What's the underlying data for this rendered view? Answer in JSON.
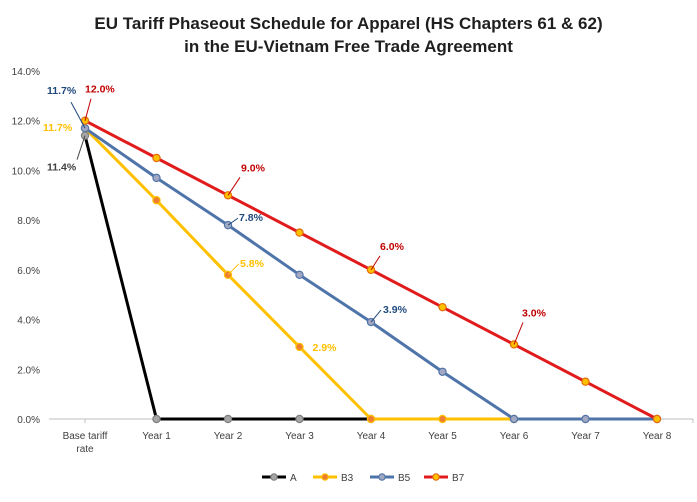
{
  "chart_data": {
    "type": "line",
    "title_lines": [
      "EU Tariff Phaseout Schedule for Apparel (HS Chapters 61 & 62)",
      "in the EU-Vietnam Free Trade Agreement"
    ],
    "categories": [
      [
        "Base tariff",
        "rate"
      ],
      [
        "Year 1"
      ],
      [
        "Year 2"
      ],
      [
        "Year 3"
      ],
      [
        "Year 4"
      ],
      [
        "Year 5"
      ],
      [
        "Year 6"
      ],
      [
        "Year 7"
      ],
      [
        "Year 8"
      ]
    ],
    "y_axis": {
      "min": 0,
      "max": 14,
      "step": 2,
      "tick_labels": [
        "0.0%",
        "2.0%",
        "4.0%",
        "6.0%",
        "8.0%",
        "10.0%",
        "12.0%",
        "14.0%"
      ]
    },
    "grid": false,
    "legend_position": "bottom",
    "series": [
      {
        "name": "A",
        "line_color": "#000000",
        "marker_fill": "#a6a6a6",
        "marker_stroke": "#7f7f7f",
        "values": [
          11.4,
          0,
          0,
          0,
          0,
          null,
          null,
          null,
          null
        ]
      },
      {
        "name": "B3",
        "line_color": "#ffc000",
        "marker_fill": "#ed7d31",
        "marker_stroke": "#ffc000",
        "values": [
          11.7,
          8.8,
          5.8,
          2.9,
          0,
          0,
          0,
          null,
          null
        ]
      },
      {
        "name": "B5",
        "line_color": "#4f74aa",
        "marker_fill": "#a3a8c2",
        "marker_stroke": "#4f74aa",
        "values": [
          11.7,
          9.7,
          7.8,
          5.8,
          3.9,
          1.9,
          0,
          0,
          0
        ]
      },
      {
        "name": "B7",
        "line_color": "#e11b1b",
        "marker_fill": "#ffc000",
        "marker_stroke": "#e36c0a",
        "values": [
          12.0,
          10.5,
          9.0,
          7.5,
          6.0,
          4.5,
          3.0,
          1.5,
          0
        ]
      }
    ],
    "data_labels": [
      {
        "series": "B7",
        "index": 0,
        "text": "12.0%",
        "color": "#c00000"
      },
      {
        "series": "B5",
        "index": 0,
        "text": "11.7%",
        "color": "#1f497d"
      },
      {
        "series": "B3",
        "index": 0,
        "text": "11.7%",
        "color": "#ffc000"
      },
      {
        "series": "A",
        "index": 0,
        "text": "11.4%",
        "color": "#404040"
      },
      {
        "series": "B7",
        "index": 2,
        "text": "9.0%",
        "color": "#c00000"
      },
      {
        "series": "B5",
        "index": 2,
        "text": "7.8%",
        "color": "#1f497d"
      },
      {
        "series": "B7",
        "index": 4,
        "text": "6.0%",
        "color": "#c00000"
      },
      {
        "series": "B3",
        "index": 2,
        "text": "5.8%",
        "color": "#ffc000"
      },
      {
        "series": "B5",
        "index": 4,
        "text": "3.9%",
        "color": "#1f497d"
      },
      {
        "series": "B7",
        "index": 6,
        "text": "3.0%",
        "color": "#c00000"
      },
      {
        "series": "B3",
        "index": 3,
        "text": "2.9%",
        "color": "#ffc000"
      }
    ]
  }
}
